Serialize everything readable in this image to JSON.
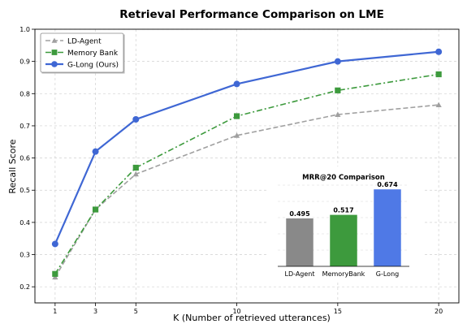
{
  "chart_data": [
    {
      "type": "line",
      "title": "Retrieval Performance Comparison on LME",
      "xlabel": "K (Number of retrieved utterances)",
      "ylabel": "Recall Score",
      "x": [
        1,
        3,
        5,
        10,
        15,
        20
      ],
      "xlim": [
        0,
        21
      ],
      "ylim": [
        0.15,
        1.0
      ],
      "yticks": [
        0.2,
        0.3,
        0.4,
        0.5,
        0.6,
        0.7,
        0.8,
        0.9,
        1.0
      ],
      "ytick_labels": [
        "0.2",
        "0.3",
        "0.4",
        "0.5",
        "0.6",
        "0.7",
        "0.8",
        "0.9",
        "1.0"
      ],
      "xtick_labels": [
        "1",
        "3",
        "5",
        "10",
        "15",
        "20"
      ],
      "grid": true,
      "legend_position": "top-left",
      "series": [
        {
          "name": "LD-Agent",
          "values": [
            0.23,
            0.44,
            0.55,
            0.67,
            0.735,
            0.765
          ],
          "color": "#a0a0a0",
          "marker": "triangle",
          "dash": "dashed"
        },
        {
          "name": "Memory Bank",
          "values": [
            0.24,
            0.44,
            0.57,
            0.73,
            0.81,
            0.86
          ],
          "color": "#3d9a3d",
          "marker": "square",
          "dash": "dashdot"
        },
        {
          "name": "G-Long (Ours)",
          "values": [
            0.333,
            0.62,
            0.72,
            0.83,
            0.9,
            0.93
          ],
          "color": "#3f67d4",
          "marker": "circle",
          "dash": "solid"
        }
      ]
    },
    {
      "type": "bar",
      "title": "MRR@20 Comparison",
      "categories": [
        "LD-Agent",
        "MemoryBank",
        "G-Long"
      ],
      "values": [
        0.495,
        0.517,
        0.674
      ],
      "value_labels": [
        "0.495",
        "0.517",
        "0.674"
      ],
      "colors": [
        "#898989",
        "#3d9a3d",
        "#4f79e6"
      ],
      "ylim": [
        0.2,
        0.7
      ],
      "grid": true
    }
  ]
}
